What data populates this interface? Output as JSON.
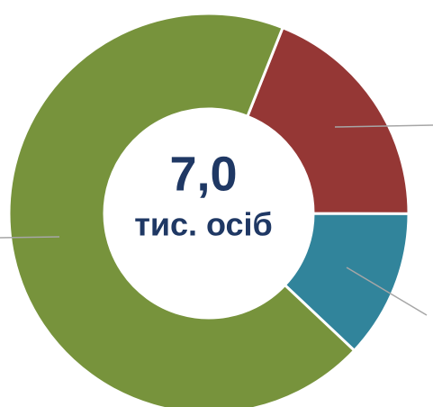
{
  "chart_data": {
    "type": "donut",
    "center_value": "7,0",
    "center_unit": "тис. осіб",
    "series": [
      {
        "color": "#953735",
        "values": [
          19
        ]
      },
      {
        "color": "#31849b",
        "values": [
          12
        ]
      },
      {
        "color": "#77933c",
        "values": [
          69
        ]
      }
    ]
  }
}
